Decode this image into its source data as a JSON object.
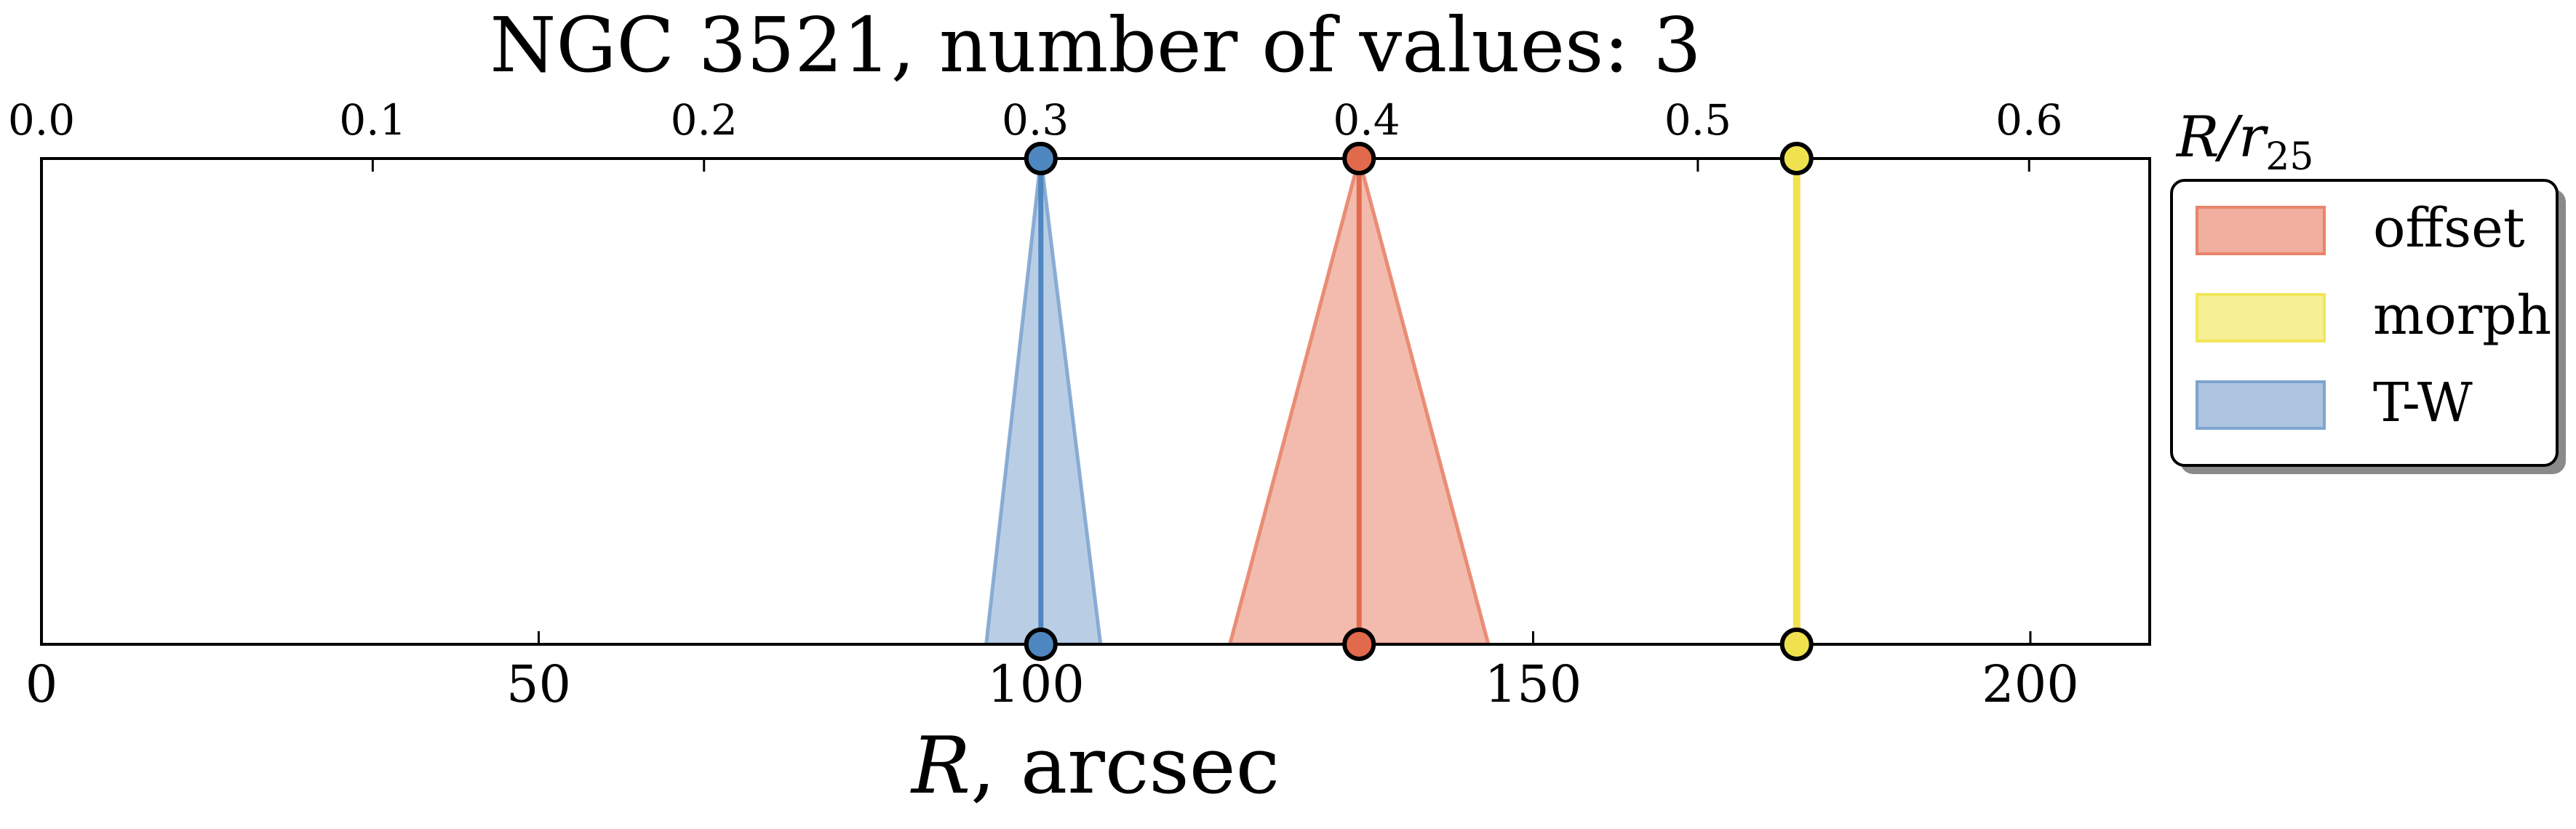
{
  "chart_data": {
    "type": "area",
    "title": "NGC 3521, number of values: 3",
    "xlabel": "R, arcsec",
    "top_xlabel": "R/r25",
    "xlim": [
      0,
      212
    ],
    "top_xlim": [
      0,
      0.6364
    ],
    "x_ticks": [
      0,
      50,
      100,
      150,
      200
    ],
    "top_x_ticks": [
      "0.0",
      "0.1",
      "0.2",
      "0.3",
      "0.4",
      "0.5",
      "0.6"
    ],
    "legend_position": "outside-top-right",
    "series": [
      {
        "name": "offset",
        "center": 132.5,
        "low": 119.5,
        "high": 145.5,
        "color": "#E8846A",
        "line_color": "#E16A4C"
      },
      {
        "name": "morph",
        "center": 176.5,
        "low": 176.5,
        "high": 176.5,
        "color": "#F2E65A",
        "line_color": "#F0E24F"
      },
      {
        "name": "T-W",
        "center": 100.5,
        "low": 95.0,
        "high": 106.5,
        "color": "#7FA5CF",
        "line_color": "#4E86C0"
      }
    ]
  }
}
